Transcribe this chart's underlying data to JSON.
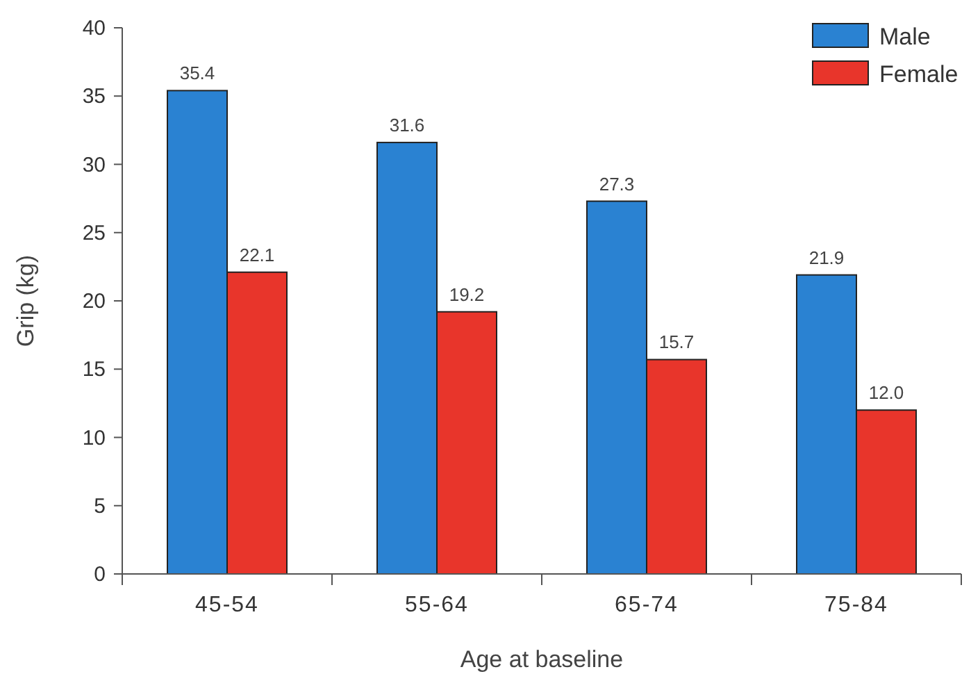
{
  "chart_data": {
    "type": "bar",
    "xlabel": "Age at baseline",
    "ylabel": "Grip (kg)",
    "categories": [
      "45-54",
      "55-64",
      "65-74",
      "75-84"
    ],
    "series": [
      {
        "name": "Male",
        "color": "#2a82d2",
        "values": [
          35.4,
          31.6,
          27.3,
          21.9
        ]
      },
      {
        "name": "Female",
        "color": "#e8352b",
        "values": [
          22.1,
          19.2,
          15.7,
          12.0
        ]
      }
    ],
    "value_labels": [
      [
        "35.4",
        "31.6",
        "27.3",
        "21.9"
      ],
      [
        "22.1",
        "19.2",
        "15.7",
        "12.0"
      ]
    ],
    "ylim": [
      0,
      40
    ],
    "yticks": [
      0,
      5,
      10,
      15,
      20,
      25,
      30,
      35,
      40
    ],
    "grid": false,
    "legend": "top right"
  }
}
